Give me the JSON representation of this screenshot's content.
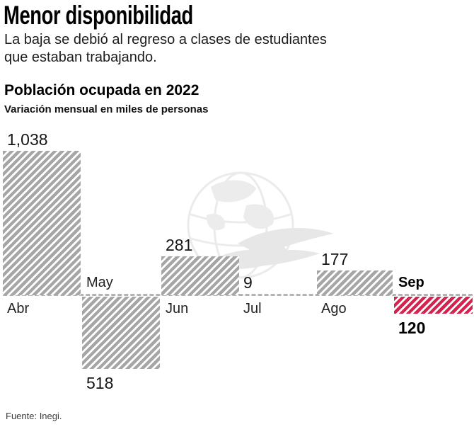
{
  "header": {
    "title": "Menor disponibilidad",
    "subtitle_line1": "La baja se debió al regreso a clases de estudiantes",
    "subtitle_line2": "que estaban trabajando."
  },
  "chart": {
    "title": "Población ocupada en 2022",
    "subtitle": "Variación mensual en miles de personas",
    "source": "Fuente: Inegi.",
    "watermark_icon": "globe-dove-watermark"
  },
  "chart_data": {
    "type": "bar",
    "title": "Población ocupada en 2022",
    "subtitle": "Variación mensual en miles de personas",
    "unit": "miles de personas",
    "year": "2022",
    "categories": [
      "Abr",
      "May",
      "Jun",
      "Jul",
      "Ago",
      "Sep"
    ],
    "values": [
      1038,
      -518,
      281,
      9,
      177,
      -120
    ],
    "value_labels": [
      "1,038",
      "518",
      "281",
      "9",
      "177",
      "120"
    ],
    "baseline_value": 0,
    "axis_range": [
      -600,
      1100
    ],
    "grid": false,
    "legend": false,
    "highlight_index": 5,
    "colors": {
      "bar_hatch": "#a6a6a6",
      "highlight_hatch": "#d5234f",
      "baseline_dash": "#b3b3b3",
      "text": "#111111"
    }
  }
}
